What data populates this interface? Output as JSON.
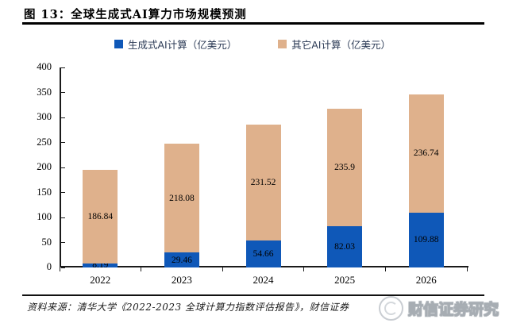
{
  "header": {
    "title": "图 13：全球生成式AI算力市场规模预测"
  },
  "legend": [
    {
      "label": "生成式AI计算（亿美元）",
      "color": "#0F58B8"
    },
    {
      "label": "其它AI计算（亿美元）",
      "color": "#DFB18C"
    }
  ],
  "chart_data": {
    "type": "bar",
    "stacked": true,
    "categories": [
      "2022",
      "2023",
      "2024",
      "2025",
      "2026"
    ],
    "series": [
      {
        "name": "生成式AI计算（亿美元）",
        "color": "#0F58B8",
        "values": [
          8.19,
          29.46,
          54.66,
          82.03,
          109.88
        ]
      },
      {
        "name": "其它AI计算（亿美元）",
        "color": "#DFB18C",
        "values": [
          186.84,
          218.08,
          231.52,
          235.9,
          236.74
        ]
      }
    ],
    "title": "全球生成式AI算力市场规模预测",
    "xlabel": "",
    "ylabel": "",
    "ylim": [
      0,
      400
    ],
    "ytick_step": 50,
    "grid": false,
    "legend_position": "top",
    "data_labels": true
  },
  "footer": {
    "source": "资料来源：清华大学《2022-2023 全球计算力指数评估报告》，财信证券"
  },
  "watermark": {
    "text": "财信证券研究",
    "logo": "caixin-securities-logo"
  }
}
